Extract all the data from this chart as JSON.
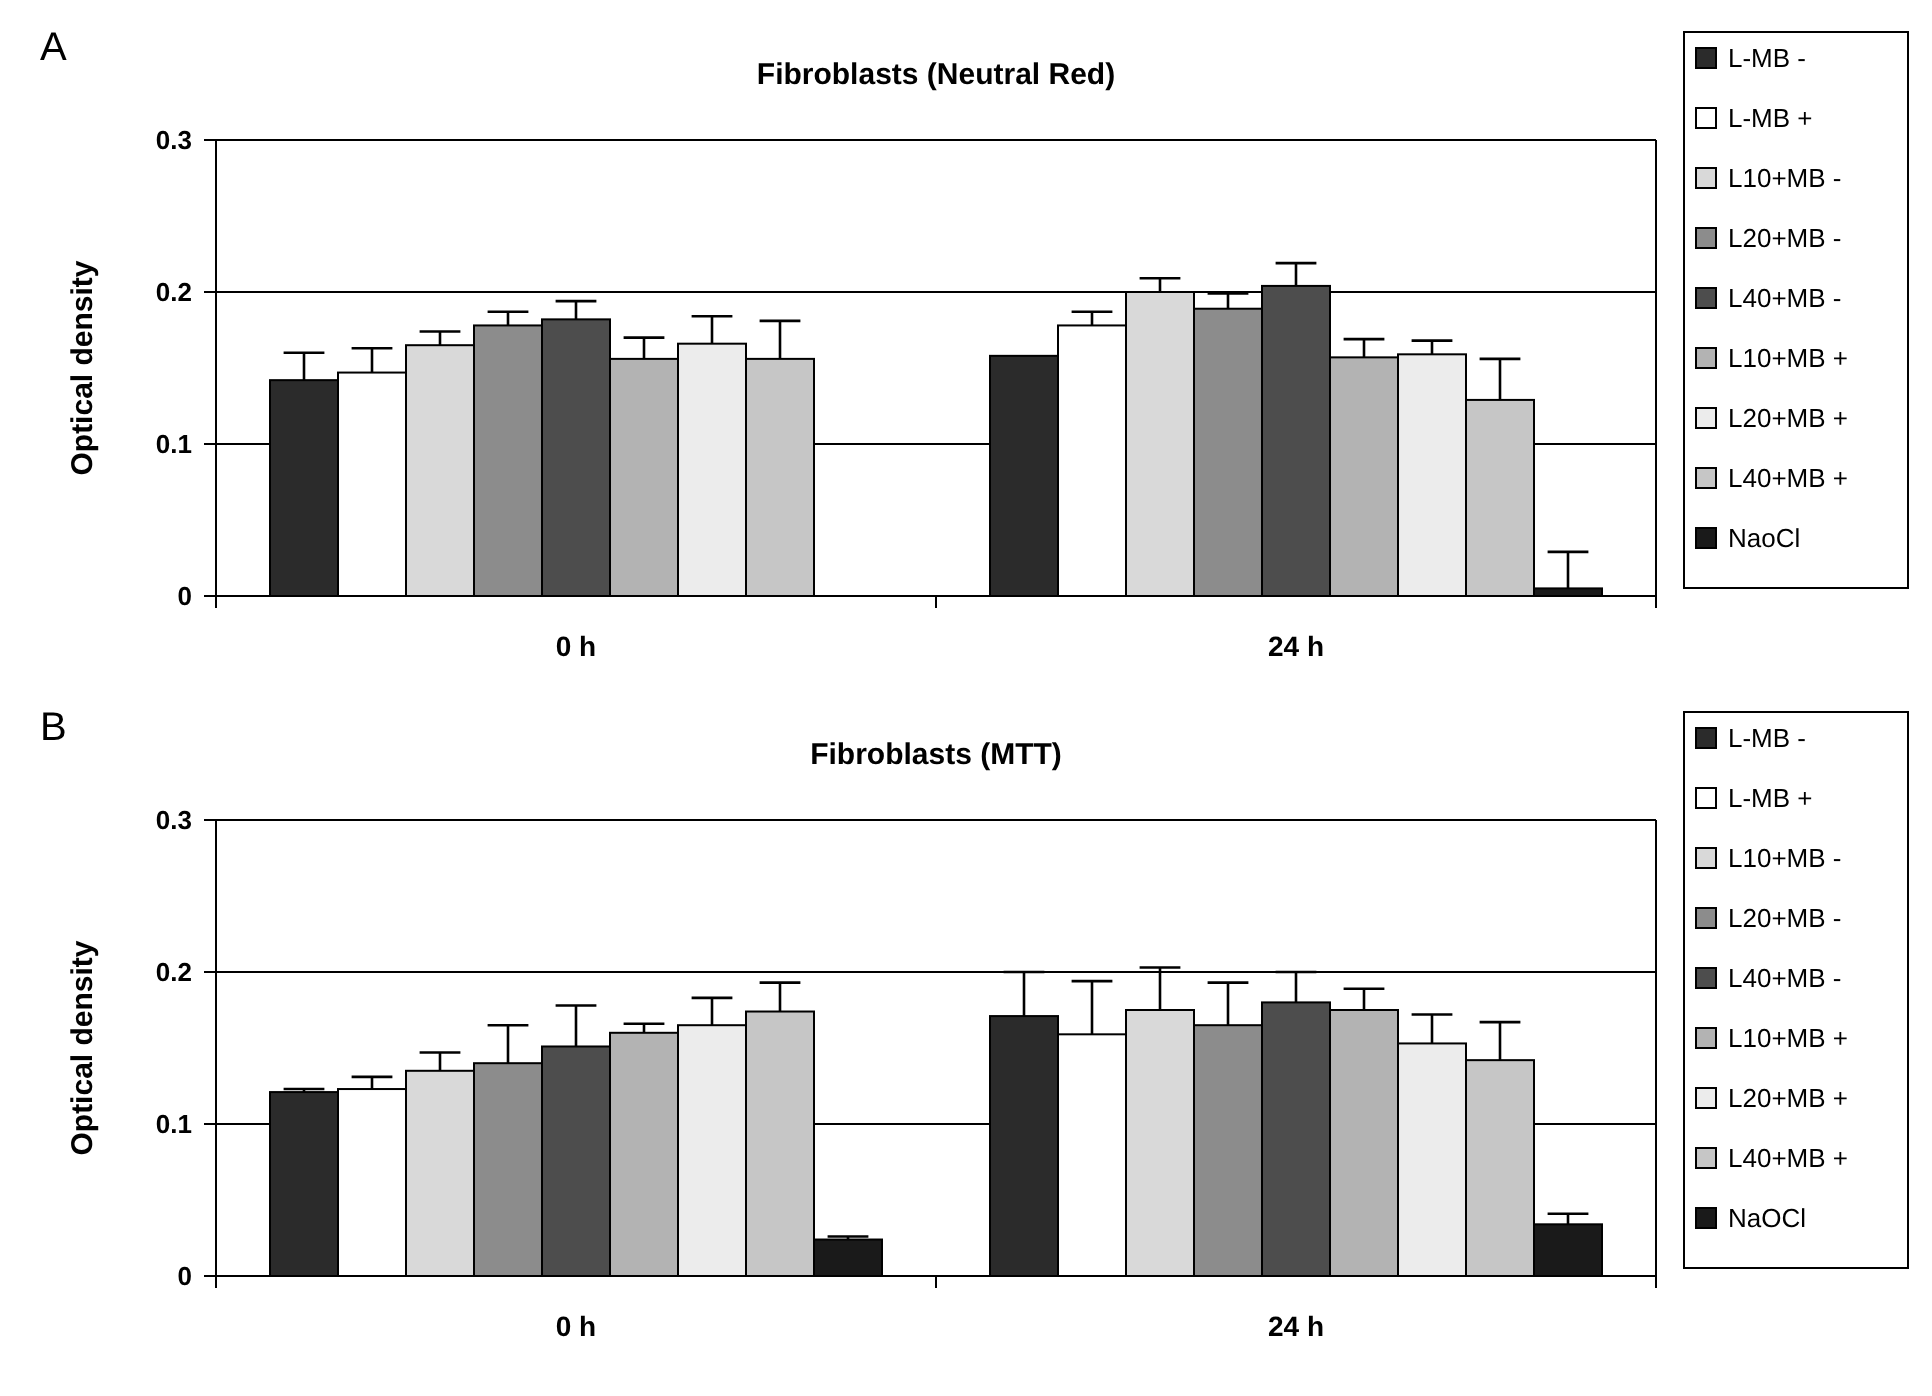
{
  "chart_data": [
    {
      "type": "bar",
      "title": "Fibroblasts (Neutral Red)",
      "ylabel": "Optical density",
      "annotations": [
        "A"
      ],
      "categories": [
        "0 h",
        "24 h"
      ],
      "ylim": [
        0,
        0.3
      ],
      "yticks": [
        0,
        0.1,
        0.2,
        0.3
      ],
      "grid": "y",
      "legend": "right",
      "series": [
        {
          "name": "L-MB -",
          "color": "#2b2b2b",
          "values": [
            0.142,
            0.158
          ],
          "errors": [
            0.018,
            null
          ]
        },
        {
          "name": "L-MB +",
          "color": "#ffffff",
          "values": [
            0.147,
            0.178
          ],
          "errors": [
            0.016,
            0.009
          ]
        },
        {
          "name": "L10+MB -",
          "color": "#d9d9d9",
          "values": [
            0.165,
            0.2
          ],
          "errors": [
            0.009,
            0.009
          ]
        },
        {
          "name": "L20+MB -",
          "color": "#8c8c8c",
          "values": [
            0.178,
            0.189
          ],
          "errors": [
            0.009,
            0.01
          ]
        },
        {
          "name": "L40+MB -",
          "color": "#4d4d4d",
          "values": [
            0.182,
            0.204
          ],
          "errors": [
            0.012,
            0.015
          ]
        },
        {
          "name": "L10+MB +",
          "color": "#b3b3b3",
          "values": [
            0.156,
            0.157
          ],
          "errors": [
            0.014,
            0.012
          ]
        },
        {
          "name": "L20+MB +",
          "color": "#ececec",
          "values": [
            0.166,
            0.159
          ],
          "errors": [
            0.018,
            0.009
          ]
        },
        {
          "name": "L40+MB +",
          "color": "#c6c6c6",
          "values": [
            0.156,
            0.129
          ],
          "errors": [
            0.025,
            0.027
          ]
        },
        {
          "name": "NaoCl",
          "color": "#1a1a1a",
          "values": [
            null,
            0.005
          ],
          "errors": [
            null,
            0.024
          ]
        }
      ]
    },
    {
      "type": "bar",
      "title": "Fibroblasts (MTT)",
      "ylabel": "Optical density",
      "annotations": [
        "B"
      ],
      "categories": [
        "0 h",
        "24 h"
      ],
      "ylim": [
        0,
        0.3
      ],
      "yticks": [
        0,
        0.1,
        0.2,
        0.3
      ],
      "grid": "y",
      "legend": "right",
      "series": [
        {
          "name": "L-MB -",
          "color": "#2b2b2b",
          "values": [
            0.121,
            0.171
          ],
          "errors": [
            0.002,
            0.029
          ]
        },
        {
          "name": "L-MB +",
          "color": "#ffffff",
          "values": [
            0.123,
            0.159
          ],
          "errors": [
            0.008,
            0.035
          ]
        },
        {
          "name": "L10+MB -",
          "color": "#d9d9d9",
          "values": [
            0.135,
            0.175
          ],
          "errors": [
            0.012,
            0.028
          ]
        },
        {
          "name": "L20+MB -",
          "color": "#8c8c8c",
          "values": [
            0.14,
            0.165
          ],
          "errors": [
            0.025,
            0.028
          ]
        },
        {
          "name": "L40+MB -",
          "color": "#4d4d4d",
          "values": [
            0.151,
            0.18
          ],
          "errors": [
            0.027,
            0.02
          ]
        },
        {
          "name": "L10+MB +",
          "color": "#b3b3b3",
          "values": [
            0.16,
            0.175
          ],
          "errors": [
            0.006,
            0.014
          ]
        },
        {
          "name": "L20+MB +",
          "color": "#ececec",
          "values": [
            0.165,
            0.153
          ],
          "errors": [
            0.018,
            0.019
          ]
        },
        {
          "name": "L40+MB +",
          "color": "#c6c6c6",
          "values": [
            0.174,
            0.142
          ],
          "errors": [
            0.019,
            0.025
          ]
        },
        {
          "name": "NaOCl",
          "color": "#1a1a1a",
          "values": [
            0.024,
            0.034
          ],
          "errors": [
            0.002,
            0.007
          ]
        }
      ]
    }
  ]
}
